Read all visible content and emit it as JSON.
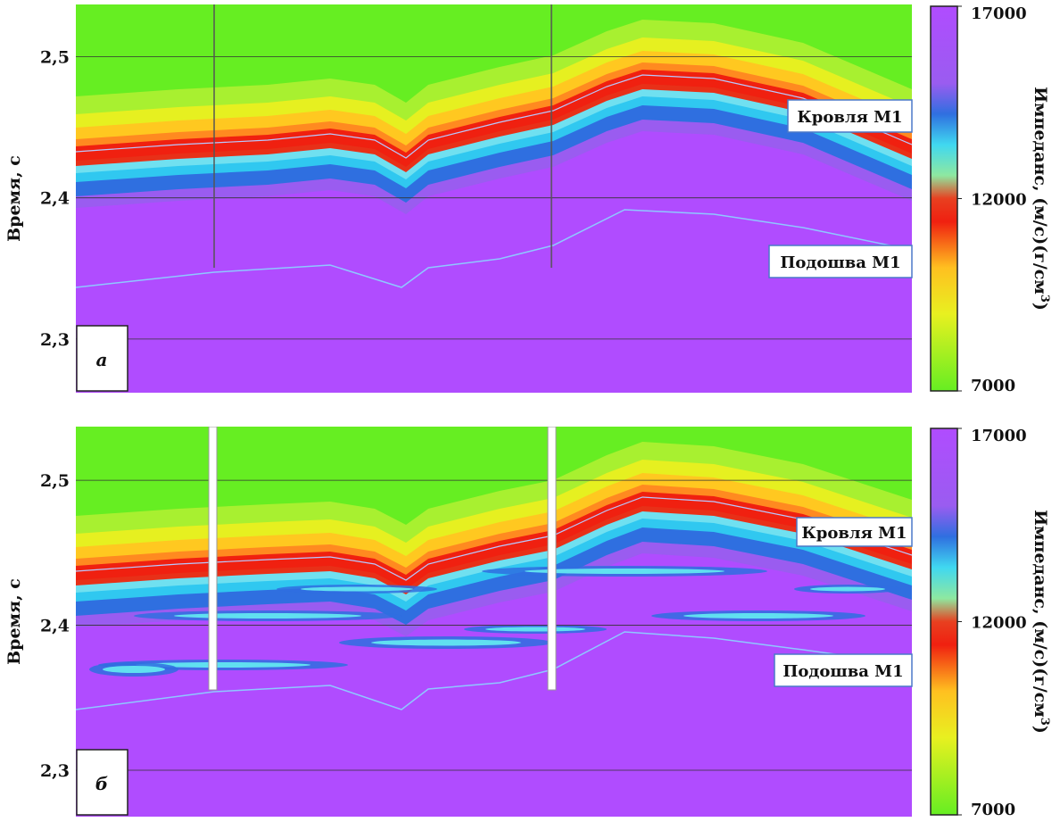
{
  "panels": [
    {
      "label": "а",
      "y_title": "Время, с",
      "ylim": [
        2.262,
        2.537
      ],
      "yticks": [
        {
          "value": 2.3,
          "label": "2,3"
        },
        {
          "value": 2.4,
          "label": "2,4"
        },
        {
          "value": 2.5,
          "label": "2,5"
        }
      ],
      "colorbar": {
        "title": "Импеданс, (м/с)(г/см",
        "title_sup": "3",
        "title_end": ")",
        "lim": [
          7000,
          17000
        ],
        "ticks": [
          7000,
          12000,
          17000
        ]
      },
      "annotations": [
        "Кровля М1",
        "Подошва М1"
      ]
    },
    {
      "label": "б",
      "y_title": "Время, с",
      "ylim": [
        2.268,
        2.537
      ],
      "yticks": [
        {
          "value": 2.3,
          "label": "2,3"
        },
        {
          "value": 2.4,
          "label": "2,4"
        },
        {
          "value": 2.5,
          "label": "2,5"
        }
      ],
      "colorbar": {
        "title": "Импеданс, (м/с)(г/см",
        "title_sup": "3",
        "title_end": ")",
        "lim": [
          7000,
          17000
        ],
        "ticks": [
          7000,
          12000,
          17000
        ]
      },
      "annotations": [
        "Кровля М1",
        "Подошва М1"
      ]
    }
  ]
}
